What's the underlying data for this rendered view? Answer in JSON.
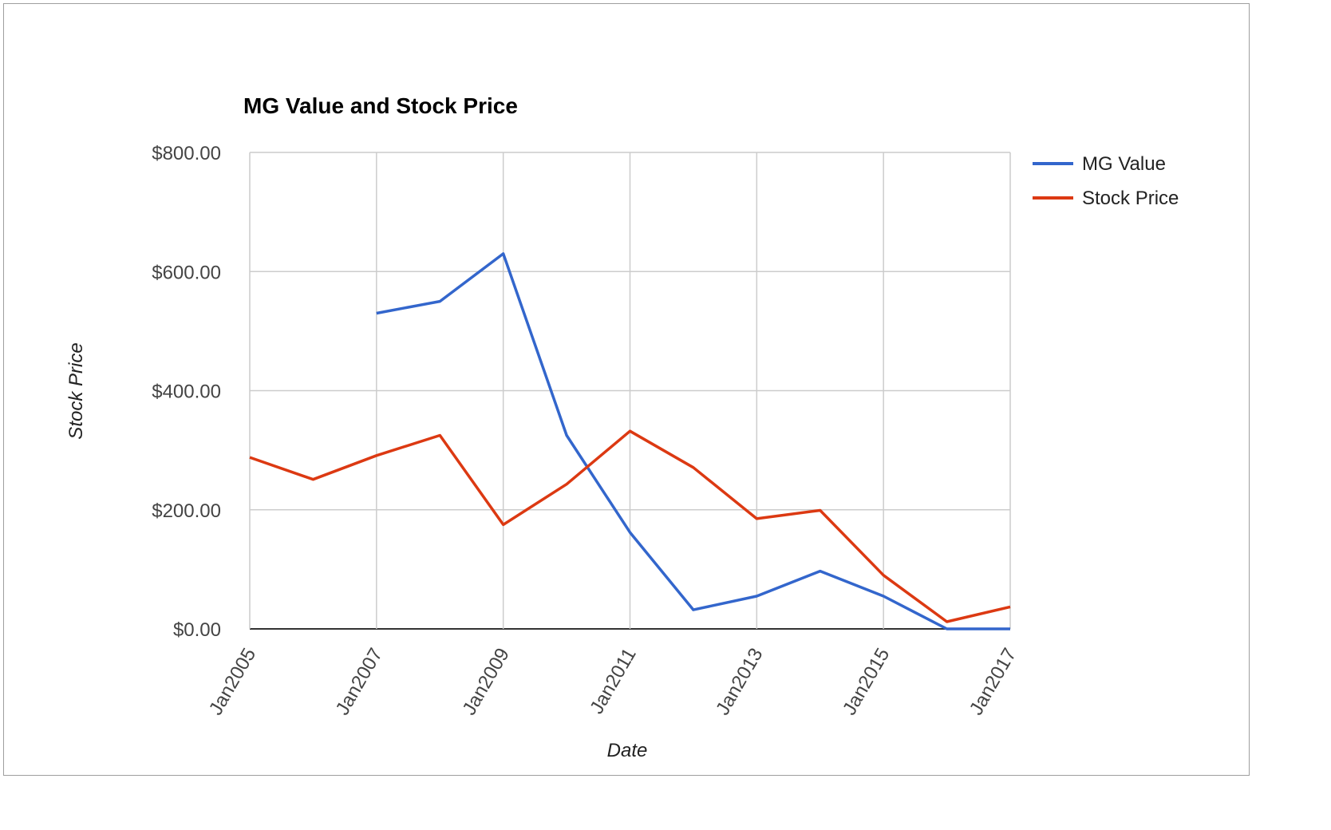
{
  "chart_data": {
    "type": "line",
    "title": "MG Value and Stock Price",
    "xlabel": "Date",
    "ylabel": "Stock Price",
    "x_ticks": [
      "Jan2005",
      "Jan2007",
      "Jan2009",
      "Jan2011",
      "Jan2013",
      "Jan2015",
      "Jan2017"
    ],
    "y_ticks": [
      "$0.00",
      "$200.00",
      "$400.00",
      "$600.00",
      "$800.00"
    ],
    "ylim": [
      0,
      800
    ],
    "xlim": [
      "2005-01",
      "2017-01"
    ],
    "grid": true,
    "legend_position": "right",
    "series": [
      {
        "name": "MG Value",
        "color": "#3366cc",
        "x": [
          "2007-01",
          "2008-01",
          "2009-01",
          "2010-01",
          "2011-01",
          "2012-01",
          "2013-01",
          "2014-01",
          "2015-01",
          "2016-01",
          "2017-01"
        ],
        "values": [
          530,
          550,
          630,
          325,
          162,
          32,
          55,
          97,
          55,
          0,
          0
        ]
      },
      {
        "name": "Stock Price",
        "color": "#dc3912",
        "x": [
          "2005-01",
          "2006-01",
          "2007-01",
          "2008-01",
          "2009-01",
          "2010-01",
          "2011-01",
          "2012-01",
          "2013-01",
          "2014-01",
          "2015-01",
          "2016-01",
          "2017-01"
        ],
        "values": [
          288,
          251,
          291,
          325,
          175,
          243,
          332,
          271,
          185,
          199,
          90,
          12,
          37
        ]
      }
    ]
  }
}
